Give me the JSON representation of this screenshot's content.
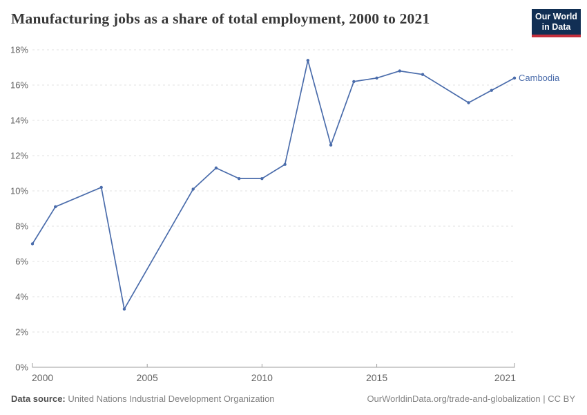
{
  "header": {
    "title": "Manufacturing jobs as a share of total employment, 2000 to 2021",
    "logo": {
      "line1": "Our World",
      "line2": "in Data"
    }
  },
  "chart_data": {
    "type": "line",
    "title": "Manufacturing jobs as a share of total employment, 2000 to 2021",
    "xlabel": "",
    "ylabel": "",
    "xlim": [
      2000,
      2021
    ],
    "ylim": [
      0,
      18
    ],
    "xticks": [
      2000,
      2005,
      2010,
      2015,
      2021
    ],
    "yticks": [
      0,
      2,
      4,
      6,
      8,
      10,
      12,
      14,
      16,
      18
    ],
    "ytick_suffix": "%",
    "grid": "horizontal-dashed",
    "legend_position": "end-of-line-label",
    "series": [
      {
        "name": "Cambodia",
        "color": "#4a6cab",
        "points": [
          {
            "year": 2000,
            "value": 7.0
          },
          {
            "year": 2001,
            "value": 9.1
          },
          {
            "year": 2003,
            "value": 10.2
          },
          {
            "year": 2004,
            "value": 3.3
          },
          {
            "year": 2007,
            "value": 10.1
          },
          {
            "year": 2008,
            "value": 11.3
          },
          {
            "year": 2009,
            "value": 10.7
          },
          {
            "year": 2010,
            "value": 10.7
          },
          {
            "year": 2011,
            "value": 11.5
          },
          {
            "year": 2012,
            "value": 17.4
          },
          {
            "year": 2013,
            "value": 12.6
          },
          {
            "year": 2014,
            "value": 16.2
          },
          {
            "year": 2015,
            "value": 16.4
          },
          {
            "year": 2016,
            "value": 16.8
          },
          {
            "year": 2017,
            "value": 16.6
          },
          {
            "year": 2019,
            "value": 15.0
          },
          {
            "year": 2020,
            "value": 15.7
          },
          {
            "year": 2021,
            "value": 16.4
          }
        ]
      }
    ]
  },
  "colors": {
    "line": "#4a6cab",
    "grid": "#e2e2e2",
    "axis": "#9e9e9e",
    "tick_label": "#636363",
    "title": "#383838",
    "entity_label": "#4a6cab",
    "logo_bg": "#112f54",
    "logo_accent": "#c42f3c",
    "footer_text": "#828282",
    "footer_label": "#4f4f4f"
  },
  "footer": {
    "source_label": "Data source:",
    "source": "United Nations Industrial Development Organization",
    "credit": "OurWorldinData.org/trade-and-globalization | CC BY"
  }
}
